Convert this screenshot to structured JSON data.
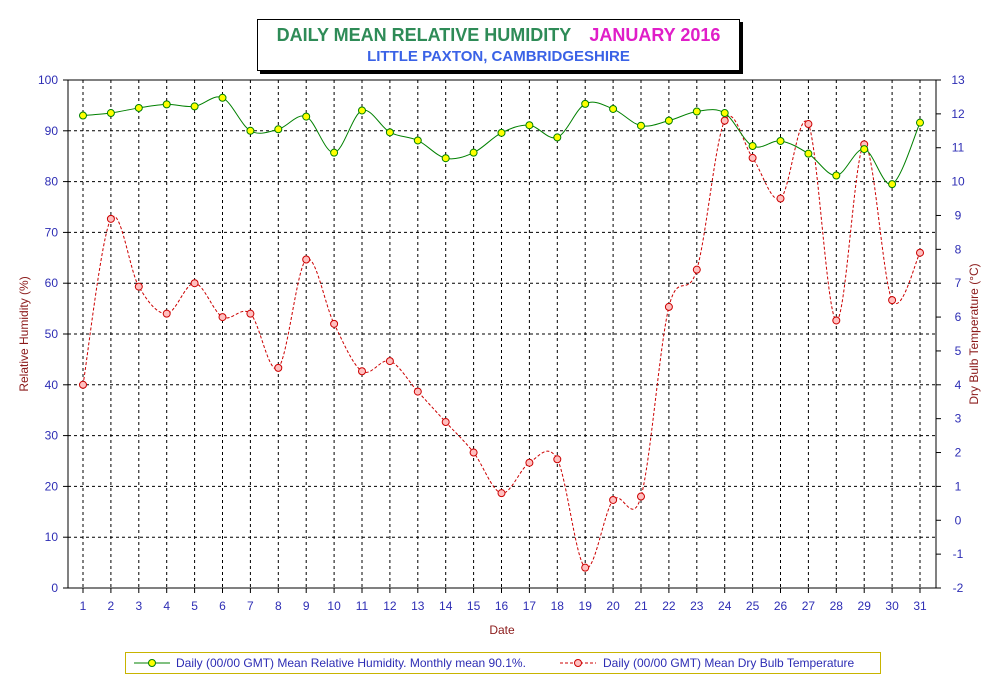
{
  "chart_data": {
    "type": "line",
    "title": "DAILY MEAN RELATIVE HUMIDITY",
    "title_period": "JANUARY 2016",
    "subtitle": "LITTLE PAXTON, CAMBRIDGESHIRE",
    "xlabel": "Date",
    "ylabel_left": "Relative Humidity (%)",
    "ylabel_right": "Dry Bulb Temperature (°C)",
    "x": [
      1,
      2,
      3,
      4,
      5,
      6,
      7,
      8,
      9,
      10,
      11,
      12,
      13,
      14,
      15,
      16,
      17,
      18,
      19,
      20,
      21,
      22,
      23,
      24,
      25,
      26,
      27,
      28,
      29,
      30,
      31
    ],
    "ylim_left": [
      0,
      100
    ],
    "yticks_left": [
      0,
      10,
      20,
      30,
      40,
      50,
      60,
      70,
      80,
      90,
      100
    ],
    "ylim_right": [
      -2,
      13
    ],
    "yticks_right": [
      -2,
      -1,
      0,
      1,
      2,
      3,
      4,
      5,
      6,
      7,
      8,
      9,
      10,
      11,
      12,
      13
    ],
    "grid": true,
    "legend_position": "bottom",
    "series": [
      {
        "name": "Daily (00/00 GMT) Mean Relative Humidity. Monthly mean 90.1%.",
        "axis": "left",
        "color": "#008000",
        "marker_color": "#ffff00",
        "values": [
          93,
          93.5,
          94.5,
          95.2,
          94.8,
          96.5,
          90,
          90.3,
          92.8,
          85.7,
          94,
          89.7,
          88.1,
          84.6,
          85.7,
          89.6,
          91.1,
          88.7,
          95.3,
          94.3,
          91,
          92,
          93.8,
          93.5,
          87,
          88,
          85.5,
          81.2,
          86.4,
          79.5,
          91.6
        ]
      },
      {
        "name": "Daily (00/00 GMT) Mean Dry Bulb Temperature",
        "axis": "right",
        "color": "#cc0000",
        "values": [
          4,
          8.9,
          6.9,
          6.1,
          7,
          6,
          6.1,
          4.5,
          7.7,
          5.8,
          4.4,
          4.7,
          3.8,
          2.9,
          2.0,
          0.8,
          1.7,
          1.8,
          -1.4,
          0.6,
          0.7,
          6.3,
          7.4,
          11.8,
          10.7,
          9.5,
          11.7,
          5.9,
          11.1,
          6.5,
          7.9
        ]
      }
    ]
  },
  "legend": {
    "rh_label": "Daily (00/00 GMT) Mean Relative Humidity. Monthly mean 90.1%.",
    "temp_label": "Daily (00/00 GMT) Mean Dry Bulb Temperature"
  },
  "colors": {
    "axis_text": "#2d2db4",
    "axis_title": "#8b1a1a",
    "title_green": "#2e8b57",
    "title_magenta": "#e01ec8",
    "subtitle_blue": "#3a62e6"
  }
}
